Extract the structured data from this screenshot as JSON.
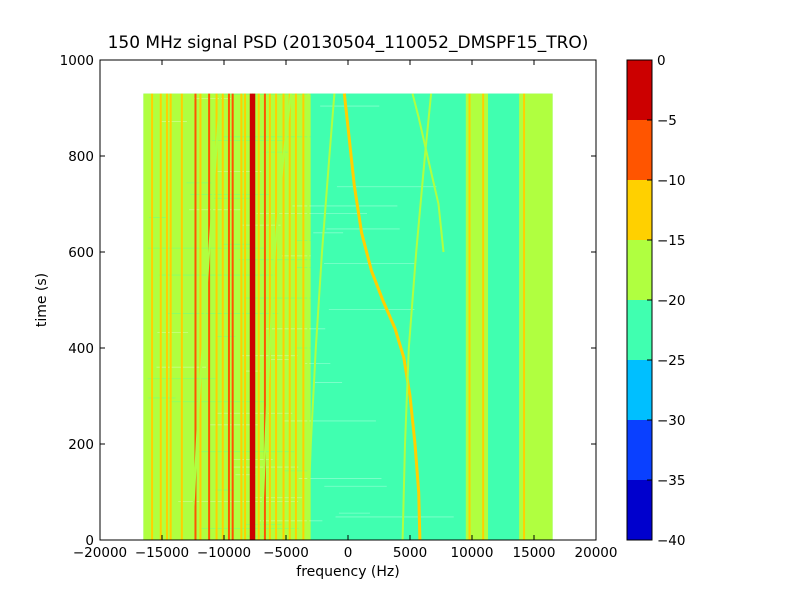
{
  "chart_data": {
    "type": "heatmap",
    "title": "150 MHz signal PSD (20130504_110052_DMSPF15_TRO)",
    "xlabel": "frequency (Hz)",
    "ylabel": "time (s)",
    "xlim": [
      -20000,
      20000
    ],
    "ylim": [
      0,
      1000
    ],
    "x_ticks": [
      -20000,
      -15000,
      -10000,
      -5000,
      0,
      5000,
      10000,
      15000,
      20000
    ],
    "x_tick_labels": [
      "−20000",
      "−15000",
      "−10000",
      "−5000",
      "0",
      "5000",
      "10000",
      "15000",
      "20000"
    ],
    "y_ticks": [
      0,
      200,
      400,
      600,
      800,
      1000
    ],
    "y_tick_labels": [
      "0",
      "200",
      "400",
      "600",
      "800",
      "1000"
    ],
    "data_extent": {
      "x": [
        -16500,
        16500
      ],
      "y": [
        0,
        930
      ]
    },
    "background_level": -25,
    "colorbar": {
      "levels": [
        -40,
        -35,
        -30,
        -25,
        -20,
        -15,
        -10,
        -5,
        0
      ],
      "tick_labels": [
        "−40",
        "−35",
        "−30",
        "−25",
        "−20",
        "−15",
        "−10",
        "−5",
        "0"
      ],
      "colors": [
        "#0000cd",
        "#0a40ff",
        "#00bfff",
        "#40ffb0",
        "#b0ff40",
        "#ffd000",
        "#ff5500",
        "#cc0000"
      ]
    },
    "regions": [
      {
        "x": [
          -16500,
          -3000
        ],
        "level": -20
      },
      {
        "x": [
          -3000,
          9500
        ],
        "level": -25
      },
      {
        "x": [
          9500,
          11300
        ],
        "level": -20
      },
      {
        "x": [
          11300,
          13800
        ],
        "level": -25
      },
      {
        "x": [
          13800,
          16500
        ],
        "level": -20
      }
    ],
    "vertical_lines": [
      {
        "x": -15800,
        "level": -15
      },
      {
        "x": -15100,
        "level": -15
      },
      {
        "x": -14600,
        "level": -15
      },
      {
        "x": -14300,
        "level": -15
      },
      {
        "x": -13400,
        "level": -15
      },
      {
        "x": -12300,
        "level": -10
      },
      {
        "x": -11900,
        "level": -15
      },
      {
        "x": -11200,
        "level": -10
      },
      {
        "x": -10600,
        "level": -15
      },
      {
        "x": -10100,
        "level": -15
      },
      {
        "x": -9600,
        "level": -10
      },
      {
        "x": -9300,
        "level": -10
      },
      {
        "x": -8600,
        "level": -15
      },
      {
        "x": -8300,
        "level": -15
      },
      {
        "x": -7800,
        "level": -5
      },
      {
        "x": -7600,
        "level": 0
      },
      {
        "x": -7200,
        "level": -15
      },
      {
        "x": -6700,
        "level": -10
      },
      {
        "x": -6300,
        "level": -15
      },
      {
        "x": -5800,
        "level": -15
      },
      {
        "x": -5200,
        "level": -15
      },
      {
        "x": -4700,
        "level": -15
      },
      {
        "x": -4200,
        "level": -15
      },
      {
        "x": -3600,
        "level": -15
      },
      {
        "x": -3200,
        "level": -20
      },
      {
        "x": 9800,
        "level": -15
      },
      {
        "x": 10400,
        "level": -20
      },
      {
        "x": 10900,
        "level": -15
      },
      {
        "x": 14200,
        "level": -15
      },
      {
        "x": 15100,
        "level": -20
      }
    ],
    "tracks": [
      {
        "name": "",
        "level": -15,
        "points": [
          [
            5800,
            0
          ],
          [
            5700,
            100
          ],
          [
            5400,
            200
          ],
          [
            5000,
            300
          ],
          [
            4500,
            380
          ],
          [
            3800,
            440
          ],
          [
            2800,
            500
          ],
          [
            1900,
            560
          ],
          [
            1100,
            640
          ],
          [
            500,
            740
          ],
          [
            0,
            860
          ],
          [
            -300,
            930
          ]
        ]
      },
      {
        "level": -20,
        "points": [
          [
            -3300,
            0
          ],
          [
            -3000,
            200
          ],
          [
            -2600,
            400
          ],
          [
            -2100,
            600
          ],
          [
            -1500,
            800
          ],
          [
            -1100,
            930
          ]
        ]
      },
      {
        "level": -20,
        "points": [
          [
            4400,
            0
          ],
          [
            4600,
            200
          ],
          [
            4900,
            400
          ],
          [
            5500,
            600
          ],
          [
            6200,
            800
          ],
          [
            6700,
            930
          ]
        ]
      },
      {
        "level": -20,
        "points": [
          [
            7700,
            600
          ],
          [
            7300,
            700
          ],
          [
            6400,
            800
          ],
          [
            5700,
            880
          ],
          [
            5200,
            930
          ]
        ]
      },
      {
        "level": -20,
        "points": [
          [
            -7000,
            0
          ],
          [
            -6500,
            300
          ],
          [
            -5900,
            600
          ],
          [
            -5200,
            800
          ],
          [
            -4600,
            930
          ]
        ]
      },
      {
        "level": -20,
        "points": [
          [
            -12600,
            0
          ],
          [
            -12000,
            300
          ],
          [
            -11200,
            600
          ],
          [
            -10300,
            930
          ]
        ]
      }
    ]
  }
}
